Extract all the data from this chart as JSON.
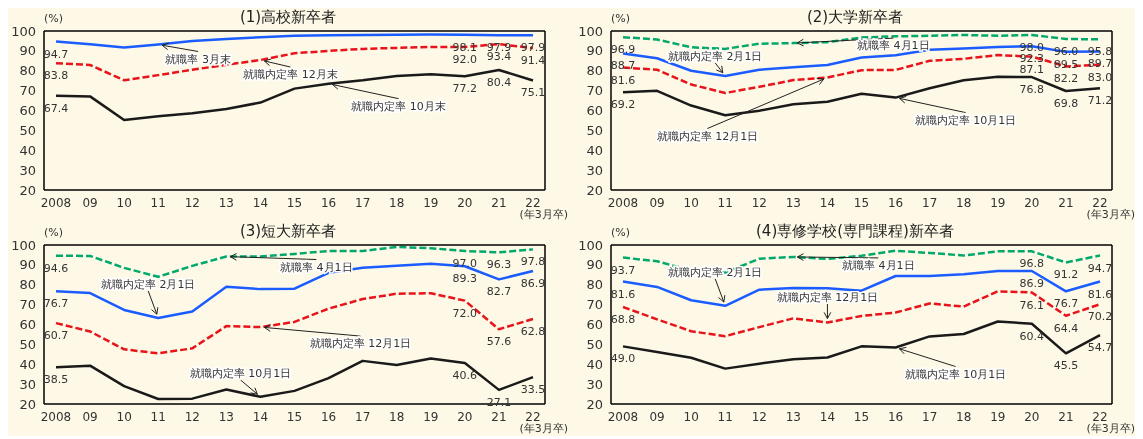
{
  "chart_data": [
    {
      "type": "line",
      "title": "(1)高校新卒者",
      "ylabel": "(%)",
      "xlabel": "(年3月卒)",
      "categories": [
        "2008",
        "09",
        "10",
        "11",
        "12",
        "13",
        "14",
        "15",
        "16",
        "17",
        "18",
        "19",
        "20",
        "21",
        "22"
      ],
      "ylim": [
        20,
        100
      ],
      "yticks": [
        20,
        30,
        40,
        50,
        60,
        70,
        80,
        90,
        100
      ],
      "series": [
        {
          "color": "#1a5cff",
          "line_style": "solid",
          "values": [
            94.7,
            93.3,
            91.7,
            93.2,
            95.0,
            96.0,
            96.9,
            97.6,
            97.8,
            98.0,
            98.1,
            98.2,
            98.1,
            97.9,
            97.9
          ],
          "value_labels": [
            "94.7",
            null,
            null,
            null,
            null,
            null,
            null,
            null,
            null,
            null,
            null,
            null,
            "98.1",
            "97.9",
            "97.9"
          ]
        },
        {
          "color": "#e8141b",
          "line_style": "dashed",
          "values": [
            83.8,
            82.9,
            75.2,
            77.8,
            80.5,
            83.0,
            85.4,
            88.8,
            90.0,
            91.0,
            91.5,
            92.0,
            92.0,
            93.4,
            91.4
          ],
          "value_labels": [
            "83.8",
            null,
            null,
            null,
            null,
            null,
            null,
            null,
            null,
            null,
            null,
            null,
            "92.0",
            "93.4",
            "91.4"
          ]
        },
        {
          "color": "#1a1a1a",
          "line_style": "solid",
          "values": [
            67.4,
            67.1,
            55.2,
            57.1,
            58.6,
            60.8,
            64.0,
            71.0,
            73.5,
            75.2,
            77.4,
            78.2,
            77.2,
            80.4,
            75.1
          ],
          "value_labels": [
            "67.4",
            null,
            null,
            null,
            null,
            null,
            null,
            null,
            null,
            null,
            null,
            null,
            "77.2",
            "80.4",
            "75.1"
          ]
        }
      ],
      "annotations": [
        {
          "text": "就職率 3月末",
          "x": "11",
          "y": 93.2
        },
        {
          "text": "就職内定率 12月末",
          "x": "14",
          "y": 85.4
        },
        {
          "text": "就職内定率 10月末",
          "x": "16",
          "y": 73.5
        }
      ]
    },
    {
      "type": "line",
      "title": "(2)大学新卒者",
      "ylabel": "(%)",
      "xlabel": "(年3月卒)",
      "categories": [
        "2008",
        "09",
        "10",
        "11",
        "12",
        "13",
        "14",
        "15",
        "16",
        "17",
        "18",
        "19",
        "20",
        "21",
        "22"
      ],
      "ylim": [
        20,
        100
      ],
      "yticks": [
        20,
        30,
        40,
        50,
        60,
        70,
        80,
        90,
        100
      ],
      "series": [
        {
          "color": "#00a86b",
          "line_style": "dashed",
          "values": [
            96.9,
            95.7,
            91.8,
            91.0,
            93.6,
            93.9,
            94.4,
            96.7,
            97.3,
            97.6,
            98.0,
            97.6,
            98.0,
            96.0,
            95.8
          ],
          "value_labels": [
            "96.9",
            null,
            null,
            null,
            null,
            null,
            null,
            null,
            null,
            null,
            null,
            null,
            "98.0",
            "96.0",
            "95.8"
          ]
        },
        {
          "color": "#1a5cff",
          "line_style": "solid",
          "values": [
            88.7,
            86.3,
            80.0,
            77.4,
            80.5,
            81.7,
            82.9,
            86.7,
            87.8,
            90.6,
            91.2,
            92.0,
            92.3,
            89.5,
            89.7
          ],
          "value_labels": [
            "88.7",
            null,
            null,
            null,
            null,
            null,
            null,
            null,
            null,
            null,
            null,
            null,
            "92.3",
            "89.5",
            "89.7"
          ]
        },
        {
          "color": "#e8141b",
          "line_style": "dashed",
          "values": [
            81.6,
            80.5,
            73.1,
            68.8,
            71.9,
            75.3,
            76.6,
            80.3,
            80.4,
            85.0,
            86.0,
            87.9,
            87.1,
            82.2,
            83.0
          ],
          "value_labels": [
            "81.6",
            null,
            null,
            null,
            null,
            null,
            null,
            null,
            null,
            null,
            null,
            null,
            "87.1",
            "82.2",
            "83.0"
          ]
        },
        {
          "color": "#1a1a1a",
          "line_style": "solid",
          "values": [
            69.2,
            69.9,
            62.5,
            57.6,
            59.9,
            63.1,
            64.4,
            68.4,
            66.5,
            71.2,
            75.2,
            77.0,
            76.8,
            69.8,
            71.2
          ],
          "value_labels": [
            "69.2",
            null,
            null,
            null,
            null,
            null,
            null,
            null,
            null,
            null,
            null,
            null,
            "76.8",
            "69.8",
            "71.2"
          ]
        }
      ],
      "annotations": [
        {
          "text": "就職率 4月1日",
          "x": "13",
          "y": 93.9
        },
        {
          "text": "就職内定率 2月1日",
          "x": "11",
          "y": 77.4
        },
        {
          "text": "就職内定率 12月1日",
          "x": "14",
          "y": 76.6
        },
        {
          "text": "就職内定率 10月1日",
          "x": "16",
          "y": 66.5
        }
      ]
    },
    {
      "type": "line",
      "title": "(3)短大新卒者",
      "ylabel": "(%)",
      "xlabel": "(年3月卒)",
      "categories": [
        "2008",
        "09",
        "10",
        "11",
        "12",
        "13",
        "14",
        "15",
        "16",
        "17",
        "18",
        "19",
        "20",
        "21",
        "22"
      ],
      "ylim": [
        20,
        100
      ],
      "yticks": [
        20,
        30,
        40,
        50,
        60,
        70,
        80,
        90,
        100
      ],
      "series": [
        {
          "color": "#00a86b",
          "line_style": "dashed",
          "values": [
            94.6,
            94.5,
            88.5,
            84.0,
            89.5,
            94.2,
            94.2,
            95.5,
            97.0,
            97.0,
            99.0,
            98.4,
            97.0,
            96.3,
            97.8
          ],
          "value_labels": [
            "94.6",
            null,
            null,
            null,
            null,
            null,
            null,
            null,
            null,
            null,
            null,
            null,
            "97.0",
            "96.3",
            "97.8"
          ]
        },
        {
          "color": "#1a5cff",
          "line_style": "solid",
          "values": [
            76.7,
            75.8,
            67.3,
            63.3,
            66.5,
            79.0,
            77.8,
            78.0,
            86.0,
            88.5,
            89.5,
            90.6,
            89.3,
            82.7,
            86.9
          ],
          "value_labels": [
            "76.7",
            null,
            null,
            null,
            null,
            null,
            null,
            null,
            null,
            null,
            null,
            null,
            "89.3",
            "82.7",
            "86.9"
          ]
        },
        {
          "color": "#e8141b",
          "line_style": "dashed",
          "values": [
            60.7,
            56.5,
            47.5,
            45.5,
            48.0,
            59.2,
            58.7,
            61.3,
            68.0,
            72.8,
            75.5,
            75.7,
            72.0,
            57.6,
            62.8
          ],
          "value_labels": [
            "60.7",
            null,
            null,
            null,
            null,
            null,
            null,
            null,
            null,
            null,
            null,
            null,
            "72.0",
            "57.6",
            "62.8"
          ]
        },
        {
          "color": "#1a1a1a",
          "line_style": "solid",
          "values": [
            38.5,
            39.3,
            29.0,
            22.5,
            22.7,
            27.3,
            23.6,
            26.6,
            33.0,
            41.7,
            39.6,
            42.9,
            40.6,
            27.1,
            33.5
          ],
          "value_labels": [
            "38.5",
            null,
            null,
            null,
            null,
            null,
            null,
            null,
            null,
            null,
            null,
            null,
            "40.6",
            "27.1",
            "33.5"
          ]
        }
      ],
      "annotations": [
        {
          "text": "就職率 4月1日",
          "x": "13",
          "y": 94.2
        },
        {
          "text": "就職内定率 2月1日",
          "x": "11",
          "y": 63.3
        },
        {
          "text": "就職内定率 12月1日",
          "x": "14",
          "y": 58.7
        },
        {
          "text": "就職内定率 10月1日",
          "x": "14",
          "y": 23.6
        }
      ]
    },
    {
      "type": "line",
      "title": "(4)専修学校(専門課程)新卒者",
      "ylabel": "(%)",
      "xlabel": "(年3月卒)",
      "categories": [
        "2008",
        "09",
        "10",
        "11",
        "12",
        "13",
        "14",
        "15",
        "16",
        "17",
        "18",
        "19",
        "20",
        "21",
        "22"
      ],
      "ylim": [
        20,
        100
      ],
      "yticks": [
        20,
        30,
        40,
        50,
        60,
        70,
        80,
        90,
        100
      ],
      "series": [
        {
          "color": "#00a86b",
          "line_style": "dashed",
          "values": [
            93.7,
            91.8,
            87.1,
            86.1,
            93.1,
            94.0,
            93.0,
            94.6,
            97.1,
            96.0,
            94.7,
            96.8,
            96.8,
            91.2,
            94.7
          ],
          "value_labels": [
            "93.7",
            null,
            null,
            null,
            null,
            null,
            null,
            null,
            null,
            null,
            null,
            null,
            "96.8",
            "91.2",
            "94.7"
          ]
        },
        {
          "color": "#1a5cff",
          "line_style": "solid",
          "values": [
            81.6,
            78.9,
            72.2,
            69.4,
            77.5,
            78.4,
            78.2,
            77.0,
            84.4,
            84.4,
            85.3,
            86.9,
            86.9,
            76.7,
            81.6
          ],
          "value_labels": [
            "81.6",
            null,
            null,
            null,
            null,
            null,
            null,
            null,
            null,
            null,
            null,
            null,
            "86.9",
            "76.7",
            "81.6"
          ]
        },
        {
          "color": "#e8141b",
          "line_style": "dashed",
          "values": [
            68.8,
            62.6,
            56.6,
            54.1,
            58.7,
            63.1,
            61.0,
            64.3,
            66.0,
            70.6,
            69.0,
            76.7,
            76.1,
            64.4,
            70.2
          ],
          "value_labels": [
            "68.8",
            null,
            null,
            null,
            null,
            null,
            null,
            null,
            null,
            null,
            null,
            null,
            "76.1",
            "64.4",
            "70.2"
          ]
        },
        {
          "color": "#1a1a1a",
          "line_style": "solid",
          "values": [
            49.0,
            46.2,
            43.3,
            37.8,
            40.3,
            42.5,
            43.4,
            49.0,
            48.4,
            54.0,
            55.2,
            61.5,
            60.4,
            45.5,
            54.7
          ],
          "value_labels": [
            "49.0",
            null,
            null,
            null,
            null,
            null,
            null,
            null,
            null,
            null,
            null,
            null,
            "60.4",
            "45.5",
            "54.7"
          ]
        }
      ],
      "annotations": [
        {
          "text": "就職率 4月1日",
          "x": "13",
          "y": 94.0
        },
        {
          "text": "就職内定率 2月1日",
          "x": "11",
          "y": 69.4
        },
        {
          "text": "就職内定率 12月1日",
          "x": "14",
          "y": 61.0
        },
        {
          "text": "就職内定率 10月1日",
          "x": "16",
          "y": 48.4
        }
      ]
    }
  ]
}
